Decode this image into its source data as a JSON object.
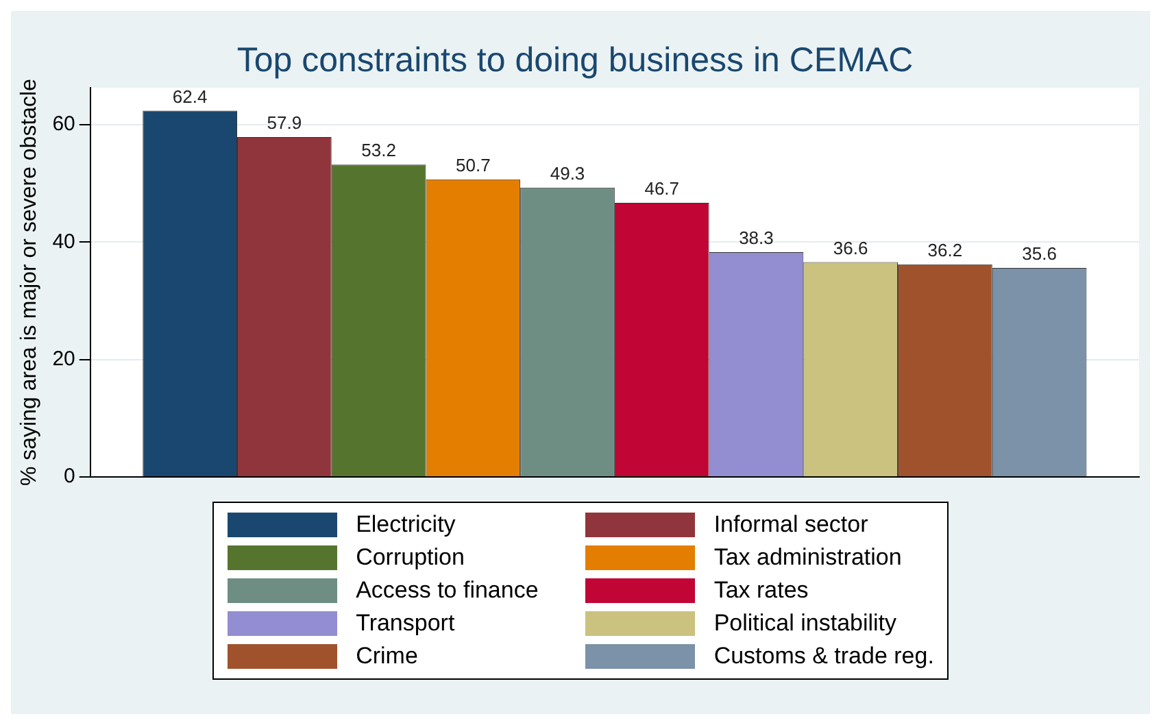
{
  "chart_data": {
    "type": "bar",
    "title": "Top constraints to doing business in CEMAC",
    "ylabel": "% saying area is major or severe obstacle",
    "categories": [
      null
    ],
    "series": [
      {
        "name": "Electricity",
        "color": "#1a476f",
        "values": [
          62.4
        ]
      },
      {
        "name": "Informal sector",
        "color": "#90353b",
        "values": [
          57.9
        ]
      },
      {
        "name": "Corruption",
        "color": "#55752f",
        "values": [
          53.2
        ]
      },
      {
        "name": "Tax administration",
        "color": "#e37e00",
        "values": [
          50.7
        ]
      },
      {
        "name": "Access to finance",
        "color": "#6e8e84",
        "values": [
          49.3
        ]
      },
      {
        "name": "Tax rates",
        "color": "#c10534",
        "values": [
          46.7
        ]
      },
      {
        "name": "Transport",
        "color": "#938dd2",
        "values": [
          38.3
        ]
      },
      {
        "name": "Political instability",
        "color": "#cac27e",
        "values": [
          36.6
        ]
      },
      {
        "name": "Crime",
        "color": "#a0522d",
        "values": [
          36.2
        ]
      },
      {
        "name": "Customs & trade reg.",
        "color": "#7b92a8",
        "values": [
          35.6
        ]
      }
    ],
    "ylim": [
      0,
      66.3
    ],
    "yticks": [
      0,
      20,
      40,
      60
    ],
    "grid": "y",
    "legend": "bottom",
    "data_labels": true
  }
}
